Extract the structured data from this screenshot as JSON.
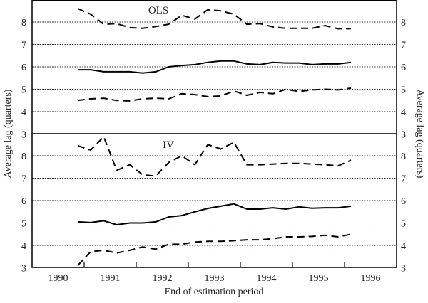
{
  "chart_data": [
    {
      "type": "line",
      "panel_label": "OLS",
      "ylabel": "Average lag (quarters)",
      "ylim": [
        3,
        9
      ],
      "yticks": [
        3,
        4,
        5,
        6,
        7,
        8
      ],
      "grid": true,
      "x": [
        1990.375,
        1990.625,
        1990.875,
        1991.125,
        1991.375,
        1991.625,
        1991.875,
        1992.125,
        1992.375,
        1992.625,
        1992.875,
        1993.125,
        1993.375,
        1993.625,
        1993.875,
        1994.125,
        1994.375,
        1994.625,
        1994.875,
        1995.125,
        1995.375,
        1995.625
      ],
      "series": [
        {
          "name": "upper",
          "style": "dashed",
          "values": [
            8.6,
            8.35,
            7.9,
            7.93,
            7.75,
            7.72,
            7.8,
            7.9,
            8.3,
            8.13,
            8.55,
            8.5,
            8.35,
            7.9,
            7.93,
            7.78,
            7.72,
            7.72,
            7.72,
            7.84,
            7.7,
            7.7
          ]
        },
        {
          "name": "estimate",
          "style": "solid",
          "values": [
            5.87,
            5.87,
            5.78,
            5.78,
            5.78,
            5.72,
            5.78,
            6.0,
            6.06,
            6.1,
            6.2,
            6.26,
            6.26,
            6.13,
            6.1,
            6.2,
            6.17,
            6.17,
            6.1,
            6.13,
            6.13,
            6.2
          ]
        },
        {
          "name": "lower",
          "style": "dashed",
          "values": [
            4.5,
            4.57,
            4.6,
            4.5,
            4.48,
            4.57,
            4.6,
            4.57,
            4.8,
            4.76,
            4.67,
            4.7,
            4.92,
            4.73,
            4.86,
            4.8,
            5.0,
            4.9,
            4.97,
            5.0,
            4.97,
            5.05
          ]
        }
      ]
    },
    {
      "type": "line",
      "panel_label": "IV",
      "ylabel": "Average lag (quarters)",
      "ylim": [
        3,
        9
      ],
      "yticks": [
        3,
        4,
        5,
        6,
        7,
        8
      ],
      "grid": true,
      "x": [
        1990.375,
        1990.625,
        1990.875,
        1991.125,
        1991.375,
        1991.625,
        1991.875,
        1992.125,
        1992.375,
        1992.625,
        1992.875,
        1993.125,
        1993.375,
        1993.625,
        1993.875,
        1994.125,
        1994.375,
        1994.625,
        1994.875,
        1995.125,
        1995.375,
        1995.625
      ],
      "series": [
        {
          "name": "upper",
          "style": "dashed",
          "values": [
            8.45,
            8.25,
            8.85,
            7.35,
            7.6,
            7.15,
            7.1,
            7.7,
            8.0,
            7.6,
            8.5,
            8.3,
            8.6,
            7.6,
            7.6,
            7.63,
            7.66,
            7.66,
            7.63,
            7.6,
            7.55,
            7.8
          ]
        },
        {
          "name": "estimate",
          "style": "solid",
          "values": [
            5.05,
            5.02,
            5.1,
            4.92,
            5.0,
            5.0,
            5.05,
            5.27,
            5.33,
            5.5,
            5.65,
            5.75,
            5.85,
            5.62,
            5.62,
            5.68,
            5.62,
            5.72,
            5.66,
            5.68,
            5.68,
            5.75
          ]
        },
        {
          "name": "lower",
          "style": "dashed",
          "values": [
            3.1,
            3.72,
            3.78,
            3.66,
            3.78,
            3.93,
            3.83,
            4.05,
            4.05,
            4.15,
            4.18,
            4.18,
            4.21,
            4.25,
            4.25,
            4.3,
            4.38,
            4.38,
            4.4,
            4.45,
            4.38,
            4.5
          ]
        }
      ]
    }
  ],
  "x_axis": {
    "xlabel": "End of estimation period",
    "xlim": [
      1989.5,
      1996.5
    ],
    "tick_labels": [
      "1990",
      "1991",
      "1992",
      "1993",
      "1994",
      "1995",
      "1996"
    ],
    "tick_marks": [
      1990.5,
      1991.5,
      1992.5,
      1993.5,
      1994.5,
      1995.5
    ]
  },
  "left_ylabel": "Average lag (quarters)",
  "right_ylabel": "Average lag (quarters)"
}
